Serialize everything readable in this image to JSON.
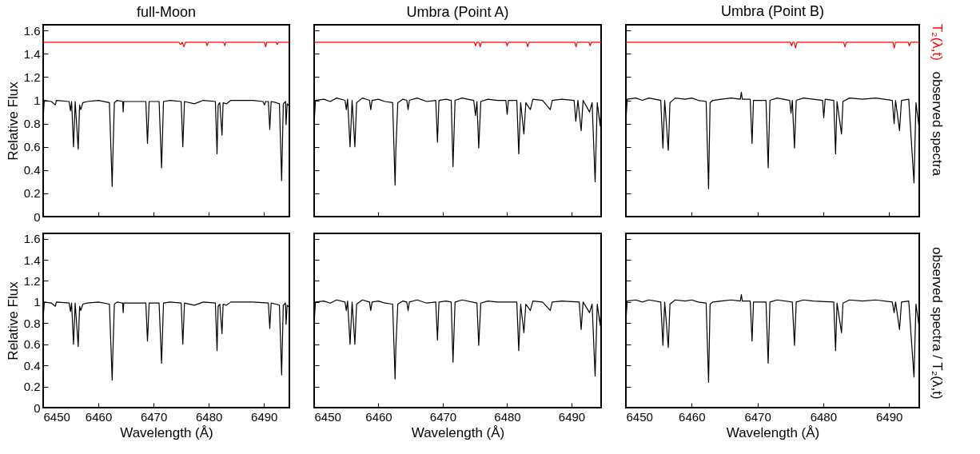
{
  "chart_data": [
    {
      "type": "line",
      "title": "full-Moon",
      "ylabel": "Relative Flux",
      "xlim": [
        6450,
        6494.6
      ],
      "xticks": [
        6450,
        6460,
        6470,
        6480,
        6490
      ],
      "ylim": [
        0,
        1.65
      ],
      "yticks": [
        0,
        0.2,
        0.4,
        0.6,
        0.8,
        1,
        1.2,
        1.4,
        1.6
      ],
      "tick_labels": "y",
      "series": [
        {
          "color": "#ff0000",
          "x": [
            6450,
            6455,
            6460,
            6465,
            6470,
            6474.6,
            6474.9,
            6475.2,
            6475.5,
            6475.8,
            6479.5,
            6479.7,
            6479.9,
            6482.7,
            6482.9,
            6483.1,
            6490.1,
            6490.3,
            6490.5,
            6492.2,
            6492.4,
            6492.6,
            6494.6
          ],
          "values": [
            1.5,
            1.5,
            1.5,
            1.5,
            1.5,
            1.5,
            1.48,
            1.5,
            1.46,
            1.5,
            1.5,
            1.47,
            1.5,
            1.5,
            1.47,
            1.5,
            1.5,
            1.46,
            1.5,
            1.5,
            1.48,
            1.5,
            1.5
          ]
        },
        {
          "color": "#000000",
          "x": [
            6450,
            6450.2,
            6451.5,
            6452.2,
            6452.4,
            6454.7,
            6454.95,
            6455.15,
            6455.5,
            6455.8,
            6456.35,
            6456.6,
            6456.8,
            6457.2,
            6458,
            6460,
            6462,
            6462.5,
            6462.6,
            6462.9,
            6463.4,
            6464.4,
            6464.5,
            6464.6,
            6466,
            6468.6,
            6468.9,
            6469.2,
            6471,
            6471.45,
            6471.8,
            6473,
            6475,
            6475.3,
            6475.6,
            6477.4,
            6479,
            6481.2,
            6481.5,
            6481.7,
            6482,
            6482.4,
            6482.6,
            6483.2,
            6484,
            6488,
            6489.8,
            6490.1,
            6490.3,
            6490.8,
            6491.05,
            6491.3,
            6492.2,
            6492.8,
            6493.2,
            6493.5,
            6493.9,
            6494,
            6494.2,
            6494.6
          ],
          "values": [
            0.84,
            1,
            0.99,
            0.96,
            1,
            0.99,
            0.91,
            0.99,
            0.6,
            0.99,
            0.58,
            0.96,
            0.92,
            0.98,
            0.99,
            1,
            0.98,
            0.26,
            0.47,
            0.98,
            1,
            0.99,
            0.9,
            0.99,
            0.99,
            0.99,
            0.63,
            0.99,
            0.99,
            0.42,
            0.99,
            1,
            0.99,
            0.6,
            0.99,
            0.97,
            1,
            0.99,
            0.54,
            0.96,
            0.98,
            0.7,
            0.98,
            0.97,
            1,
            1,
            0.99,
            0.96,
            0.99,
            0.99,
            0.75,
            0.99,
            0.98,
            0.97,
            0.31,
            0.97,
            0.99,
            0.79,
            0.97,
            0.95
          ]
        }
      ]
    },
    {
      "type": "line",
      "title": "Umbra (Point A)",
      "xlim": [
        6450,
        6494.6
      ],
      "xticks": [
        6450,
        6460,
        6470,
        6480,
        6490
      ],
      "ylim": [
        0,
        1.65
      ],
      "yticks": [
        0,
        0.2,
        0.4,
        0.6,
        0.8,
        1,
        1.2,
        1.4,
        1.6
      ],
      "tick_labels": false,
      "series": [
        {
          "color": "#ff0000",
          "x": [
            6450,
            6455,
            6460,
            6465,
            6470,
            6474.9,
            6475.1,
            6475.3,
            6475.6,
            6475.8,
            6476,
            6479.8,
            6480,
            6480.2,
            6483,
            6483.2,
            6483.4,
            6490.5,
            6490.7,
            6490.9,
            6492.7,
            6492.9,
            6493.1,
            6494.6
          ],
          "values": [
            1.5,
            1.5,
            1.5,
            1.5,
            1.5,
            1.5,
            1.47,
            1.5,
            1.5,
            1.46,
            1.5,
            1.5,
            1.47,
            1.5,
            1.5,
            1.46,
            1.5,
            1.5,
            1.46,
            1.5,
            1.5,
            1.47,
            1.5,
            1.5
          ]
        },
        {
          "color": "#000000",
          "x": [
            6450,
            6450.2,
            6451.5,
            6452.5,
            6453.5,
            6454.8,
            6455,
            6455.2,
            6455.58,
            6455.9,
            6456.33,
            6456.6,
            6457.5,
            6458.6,
            6458.8,
            6459,
            6460,
            6461,
            6462.2,
            6462.58,
            6462.7,
            6463,
            6463.8,
            6464.4,
            6464.6,
            6464.8,
            6466,
            6467.5,
            6468.9,
            6469.17,
            6469.4,
            6470.5,
            6471.3,
            6471.58,
            6471.9,
            6473,
            6474.8,
            6475.08,
            6475.3,
            6475.58,
            6475.9,
            6477,
            6478.5,
            6479.8,
            6480,
            6480.2,
            6481.5,
            6481.8,
            6482.1,
            6482.6,
            6482.9,
            6483.6,
            6484,
            6485.5,
            6486.7,
            6487,
            6488.5,
            6490.4,
            6490.67,
            6491,
            6491.5,
            6491.8,
            6492.8,
            6493.2,
            6493.67,
            6494,
            6494.46,
            6494.6
          ],
          "values": [
            0.8,
            1,
            1.01,
            0.99,
            1.02,
            1,
            0.92,
            1.01,
            0.6,
            1,
            0.6,
            0.98,
            1.02,
            1,
            0.92,
            1,
            1.01,
            0.99,
            0.98,
            0.27,
            0.57,
            0.98,
            1.01,
            1,
            0.92,
            1,
            1.02,
            0.99,
            1,
            0.64,
            1,
            1.01,
            1,
            0.43,
            1,
            1.02,
            1,
            0.87,
            0.99,
            0.59,
            0.99,
            1.01,
            1,
            1,
            0.88,
            1,
            1,
            0.54,
            0.98,
            0.71,
            0.98,
            0.92,
            1.01,
            1,
            0.92,
            1,
            1.01,
            1,
            0.82,
            1,
            0.74,
            1,
            0.9,
            0.98,
            0.3,
            0.98,
            0.78,
            0.95
          ]
        }
      ]
    },
    {
      "type": "line",
      "title": "Umbra (Point B)",
      "xlim": [
        6450,
        6494.6
      ],
      "xticks": [
        6450,
        6460,
        6470,
        6480,
        6490
      ],
      "ylim": [
        0,
        1.65
      ],
      "yticks": [
        0,
        0.2,
        0.4,
        0.6,
        0.8,
        1,
        1.2,
        1.4,
        1.6
      ],
      "tick_labels": false,
      "series": [
        {
          "name": "T₂(λ,t)",
          "color": "#ff0000",
          "x": [
            6450,
            6455,
            6460,
            6465,
            6470,
            6475,
            6475.2,
            6475.4,
            6475.6,
            6475.8,
            6476,
            6483.1,
            6483.3,
            6483.5,
            6490.6,
            6490.8,
            6491,
            6492.9,
            6493.1,
            6493.3,
            6494.6
          ],
          "values": [
            1.5,
            1.5,
            1.5,
            1.5,
            1.5,
            1.5,
            1.47,
            1.5,
            1.5,
            1.45,
            1.5,
            1.5,
            1.46,
            1.5,
            1.5,
            1.45,
            1.5,
            1.5,
            1.47,
            1.5,
            1.5
          ]
        },
        {
          "name": "observed spectra",
          "color": "#000000",
          "x": [
            6450,
            6450.2,
            6451.5,
            6452.5,
            6453.5,
            6455.3,
            6455.63,
            6455.9,
            6456.45,
            6456.7,
            6457.5,
            6459,
            6460,
            6461,
            6462.2,
            6462.57,
            6462.8,
            6463.2,
            6464.5,
            6466,
            6467.4,
            6467.55,
            6467.7,
            6468.9,
            6469.18,
            6469.4,
            6471.3,
            6471.63,
            6471.9,
            6473,
            6474.9,
            6475.1,
            6475.3,
            6475.63,
            6475.9,
            6477,
            6478.5,
            6479.9,
            6480.08,
            6480.3,
            6481.6,
            6481.88,
            6482.1,
            6482.78,
            6483,
            6484,
            6486,
            6488,
            6490.5,
            6490.78,
            6491,
            6491.6,
            6491.9,
            6493,
            6493.8,
            6494.1,
            6494.57,
            6494.6
          ],
          "values": [
            0.82,
            1.01,
            1.02,
            1,
            1.02,
            1,
            0.59,
            1,
            0.57,
            0.98,
            1.02,
            1.01,
            1.02,
            1,
            0.99,
            0.24,
            0.98,
            1,
            1.01,
            1.02,
            1.01,
            1.07,
            1.01,
            1.01,
            0.63,
            1,
            1,
            0.42,
            1,
            1.02,
            1,
            0.89,
            1,
            0.59,
            1,
            1.02,
            1.01,
            1,
            0.85,
            1.01,
            1,
            0.54,
            0.99,
            0.71,
            0.99,
            1.02,
            1.01,
            1.02,
            1,
            0.8,
            1,
            0.74,
            1,
            1.01,
            0.29,
            0.98,
            0.77,
            0.8
          ]
        }
      ]
    },
    {
      "type": "line",
      "xlabel": "Wavelength (Å)",
      "ylabel": "Relative Flux",
      "xlim": [
        6450,
        6494.6
      ],
      "xticks": [
        6450,
        6460,
        6470,
        6480,
        6490
      ],
      "ylim": [
        0,
        1.65
      ],
      "yticks": [
        0,
        0.2,
        0.4,
        0.6,
        0.8,
        1,
        1.2,
        1.4,
        1.6
      ],
      "series": [
        {
          "color": "#000000",
          "x": [
            6450,
            6450.2,
            6451.5,
            6452.2,
            6452.4,
            6454.7,
            6454.95,
            6455.15,
            6455.5,
            6455.8,
            6456.35,
            6456.6,
            6456.8,
            6457.2,
            6458,
            6460,
            6462,
            6462.5,
            6462.6,
            6462.9,
            6463.4,
            6464.4,
            6464.5,
            6464.6,
            6466,
            6468.6,
            6468.9,
            6469.2,
            6471,
            6471.45,
            6471.8,
            6473,
            6475,
            6475.3,
            6475.6,
            6477.4,
            6479,
            6481.2,
            6481.5,
            6481.7,
            6482,
            6482.4,
            6482.6,
            6483.2,
            6484,
            6488,
            6490.8,
            6491.05,
            6491.3,
            6492.2,
            6492.8,
            6493.2,
            6493.5,
            6493.9,
            6494,
            6494.2,
            6494.6
          ],
          "values": [
            0.84,
            1,
            0.99,
            0.96,
            1,
            0.99,
            0.91,
            0.99,
            0.6,
            0.99,
            0.58,
            0.96,
            0.92,
            0.98,
            0.99,
            1,
            0.98,
            0.26,
            0.47,
            0.98,
            1,
            0.99,
            0.9,
            0.99,
            0.99,
            0.99,
            0.63,
            0.99,
            0.99,
            0.42,
            0.99,
            1,
            0.99,
            0.6,
            0.99,
            0.97,
            1,
            0.99,
            0.54,
            0.96,
            0.98,
            0.7,
            0.98,
            0.97,
            1,
            1,
            0.99,
            0.75,
            0.99,
            0.98,
            0.97,
            0.31,
            0.97,
            0.99,
            0.79,
            0.97,
            0.95
          ]
        }
      ]
    },
    {
      "type": "line",
      "xlabel": "Wavelength (Å)",
      "xlim": [
        6450,
        6494.6
      ],
      "xticks": [
        6450,
        6460,
        6470,
        6480,
        6490
      ],
      "ylim": [
        0,
        1.65
      ],
      "yticks": [
        0,
        0.2,
        0.4,
        0.6,
        0.8,
        1,
        1.2,
        1.4,
        1.6
      ],
      "tick_labels": "x",
      "series": [
        {
          "color": "#000000",
          "x": [
            6450,
            6450.2,
            6451.5,
            6452.5,
            6453.5,
            6454.8,
            6455,
            6455.2,
            6455.58,
            6455.9,
            6456.33,
            6456.6,
            6457.5,
            6458.6,
            6458.8,
            6459,
            6460,
            6461,
            6462.2,
            6462.58,
            6462.7,
            6463,
            6463.8,
            6464.4,
            6464.6,
            6464.8,
            6466,
            6467.5,
            6468.9,
            6469.17,
            6469.4,
            6470.5,
            6471.3,
            6471.58,
            6471.9,
            6473,
            6475.3,
            6475.58,
            6475.9,
            6477,
            6478.5,
            6481.5,
            6481.8,
            6482.1,
            6482.6,
            6482.9,
            6483.6,
            6484,
            6485.5,
            6486.7,
            6487,
            6488.5,
            6491.2,
            6491.5,
            6491.8,
            6492.8,
            6493.2,
            6493.67,
            6494,
            6494.46,
            6494.6
          ],
          "values": [
            0.8,
            1,
            1.01,
            0.99,
            1.02,
            1,
            0.92,
            1.01,
            0.6,
            1,
            0.6,
            0.98,
            1.02,
            1,
            0.92,
            1,
            1.01,
            0.99,
            0.98,
            0.27,
            0.57,
            0.98,
            1.01,
            1,
            0.92,
            1,
            1.02,
            0.99,
            1,
            0.64,
            1,
            1.01,
            1,
            0.43,
            1,
            1.02,
            0.99,
            0.59,
            0.99,
            1.01,
            1,
            1,
            0.54,
            0.98,
            0.71,
            0.98,
            0.92,
            1.01,
            1,
            0.92,
            1,
            1.01,
            1,
            0.74,
            1,
            0.9,
            0.98,
            0.3,
            0.98,
            0.78,
            0.95
          ]
        }
      ]
    },
    {
      "type": "line",
      "xlabel": "Wavelength (Å)",
      "xlim": [
        6450,
        6494.6
      ],
      "xticks": [
        6450,
        6460,
        6470,
        6480,
        6490
      ],
      "ylim": [
        0,
        1.65
      ],
      "yticks": [
        0,
        0.2,
        0.4,
        0.6,
        0.8,
        1,
        1.2,
        1.4,
        1.6
      ],
      "tick_labels": "x",
      "series": [
        {
          "name": "observed spectra / T₂(λ,t)",
          "color": "#000000",
          "x": [
            6450,
            6450.2,
            6451.5,
            6452.5,
            6453.5,
            6455.3,
            6455.63,
            6455.9,
            6456.45,
            6456.7,
            6457.5,
            6459,
            6460,
            6461,
            6462.2,
            6462.57,
            6462.8,
            6463.2,
            6464.5,
            6466,
            6467.4,
            6467.55,
            6467.7,
            6468.9,
            6469.18,
            6469.4,
            6471.3,
            6471.63,
            6471.9,
            6473,
            6475.3,
            6475.63,
            6475.9,
            6477,
            6478.5,
            6481.6,
            6481.88,
            6482.1,
            6482.78,
            6483,
            6484,
            6486,
            6488,
            6490.5,
            6490.78,
            6491,
            6491.6,
            6491.9,
            6493,
            6493.8,
            6494.1,
            6494.57,
            6494.6
          ],
          "values": [
            0.82,
            1.01,
            1.02,
            1,
            1.02,
            1,
            0.59,
            1,
            0.57,
            0.98,
            1.02,
            1.01,
            1.02,
            1,
            0.99,
            0.24,
            0.98,
            1,
            1.01,
            1.02,
            1.01,
            1.07,
            1.01,
            1.01,
            0.63,
            1,
            1,
            0.42,
            1,
            1.02,
            1,
            0.59,
            1,
            1.02,
            1.01,
            1,
            0.54,
            0.99,
            0.71,
            0.99,
            1.02,
            1.01,
            1.02,
            1,
            0.9,
            1,
            0.74,
            1,
            1.01,
            0.29,
            0.98,
            0.77,
            0.8
          ]
        }
      ]
    }
  ]
}
